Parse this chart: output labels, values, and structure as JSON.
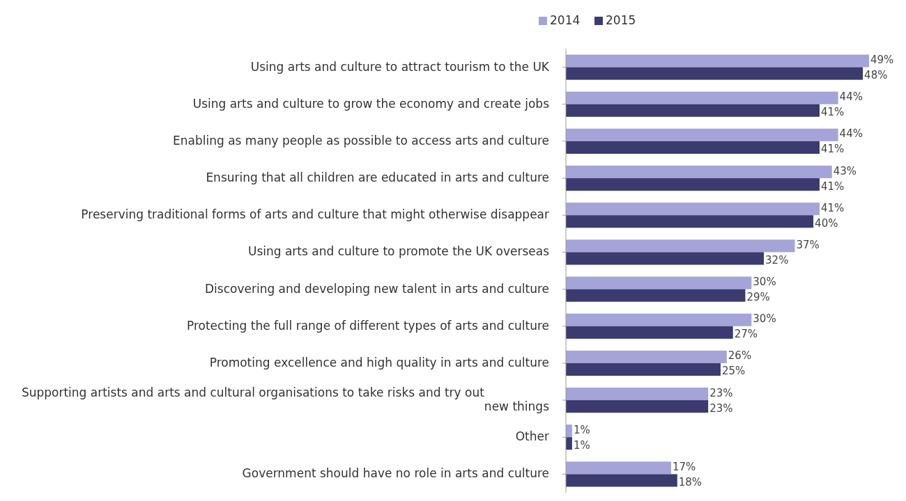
{
  "chart_data": {
    "type": "bar",
    "orientation": "horizontal",
    "legend": "top",
    "categories": [
      "Using arts and culture to attract tourism to the UK",
      "Using arts and culture to grow the economy and create jobs",
      "Enabling as many people as possible to access arts and culture",
      "Ensuring that all children are educated in arts and culture",
      "Preserving traditional forms of arts and culture that might otherwise disappear",
      "Using arts and culture to promote the UK overseas",
      "Discovering and developing new talent in arts and culture",
      "Protecting the full range of different types of arts and culture",
      "Promoting excellence and high quality in arts and culture",
      "Supporting artists and arts and cultural organisations to take risks and try out new things",
      "Other",
      "Government should have no role in arts and culture"
    ],
    "series": [
      {
        "name": "2014",
        "color": "#a4a4d8",
        "values": [
          49,
          44,
          44,
          43,
          41,
          37,
          30,
          30,
          26,
          23,
          1,
          17
        ],
        "value_labels": [
          "49%",
          "44%",
          "44%",
          "43%",
          "41%",
          "37%",
          "30%",
          "30%",
          "26%",
          "23%",
          "1%",
          "17%"
        ]
      },
      {
        "name": "2015",
        "color": "#3b3b70",
        "values": [
          48,
          41,
          41,
          41,
          40,
          32,
          29,
          27,
          25,
          23,
          1,
          18
        ],
        "value_labels": [
          "48%",
          "41%",
          "41%",
          "41%",
          "40%",
          "32%",
          "29%",
          "27%",
          "25%",
          "23%",
          "1%",
          "18%"
        ]
      }
    ]
  }
}
